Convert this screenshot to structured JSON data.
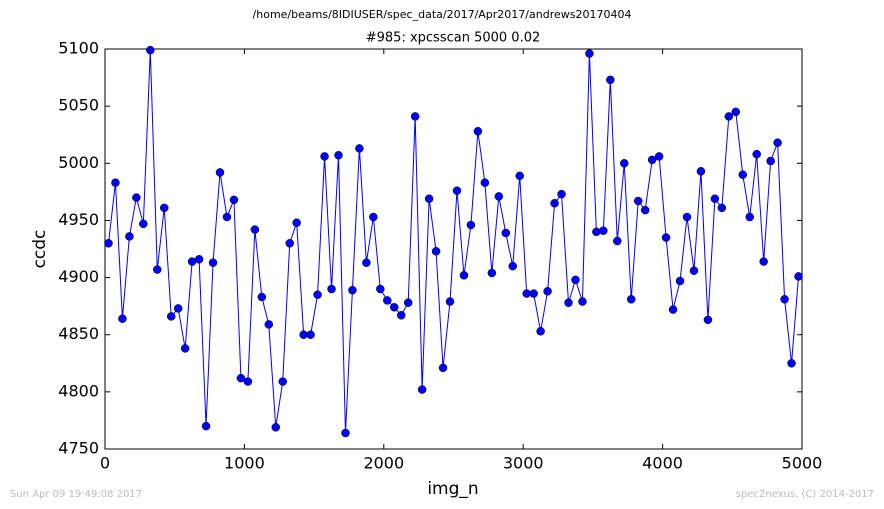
{
  "chart_data": {
    "type": "line",
    "header": "/home/beams/8IDIUSER/spec_data/2017/Apr2017/andrews20170404",
    "title": "#985: xpcsscan 5000 0.02",
    "x_label": "img_n",
    "y_label": "ccdc",
    "footer_left": "Sun Apr 09 19:49:08 2017",
    "footer_right": "spec2nexus, (C) 2014-2017",
    "color": "#0000ff",
    "marker": true,
    "x": [
      25,
      75,
      125,
      175,
      225,
      275,
      325,
      375,
      425,
      475,
      525,
      575,
      625,
      675,
      725,
      775,
      825,
      875,
      925,
      975,
      1025,
      1075,
      1125,
      1175,
      1225,
      1275,
      1325,
      1375,
      1425,
      1475,
      1525,
      1575,
      1625,
      1675,
      1725,
      1775,
      1825,
      1875,
      1925,
      1975,
      2025,
      2075,
      2125,
      2175,
      2225,
      2275,
      2325,
      2375,
      2425,
      2475,
      2525,
      2575,
      2625,
      2675,
      2725,
      2775,
      2825,
      2875,
      2925,
      2975,
      3025,
      3075,
      3125,
      3175,
      3225,
      3275,
      3325,
      3375,
      3425,
      3475,
      3525,
      3575,
      3625,
      3675,
      3725,
      3775,
      3825,
      3875,
      3925,
      3975,
      4025,
      4075,
      4125,
      4175,
      4225,
      4275,
      4325,
      4375,
      4425,
      4475,
      4525,
      4575,
      4625,
      4675,
      4725,
      4775,
      4825,
      4875,
      4925,
      4975
    ],
    "values": [
      4930,
      4983,
      4864,
      4936,
      4970,
      4947,
      5099,
      4907,
      4961,
      4866,
      4873,
      4838,
      4914,
      4916,
      4770,
      4913,
      4992,
      4953,
      4968,
      4812,
      4809,
      4942,
      4883,
      4859,
      4769,
      4809,
      4930,
      4948,
      4850,
      4850,
      4885,
      5006,
      4890,
      5007,
      4764,
      4889,
      5013,
      4913,
      4953,
      4890,
      4880,
      4874,
      4867,
      4878,
      5041,
      4802,
      4969,
      4923,
      4821,
      4879,
      4976,
      4902,
      4946,
      5028,
      4983,
      4904,
      4971,
      4939,
      4910,
      4989,
      4886,
      4886,
      4853,
      4888,
      4965,
      4973,
      4878,
      4898,
      4879,
      5096,
      4940,
      4941,
      5073,
      4932,
      5000,
      4881,
      4967,
      4959,
      5003,
      5006,
      4935,
      4872,
      4897,
      4953,
      4906,
      4993,
      4863,
      4969,
      4961,
      5041,
      5045,
      4990,
      4953,
      5008,
      4914,
      5002,
      5018,
      4881,
      4825,
      4901
    ],
    "xlim": [
      0,
      5000
    ],
    "xticks": [
      0,
      1000,
      2000,
      3000,
      4000,
      5000
    ],
    "ylim": [
      4750,
      5100
    ],
    "yticks": [
      4750,
      4800,
      4850,
      4900,
      4950,
      5000,
      5050,
      5100
    ]
  }
}
